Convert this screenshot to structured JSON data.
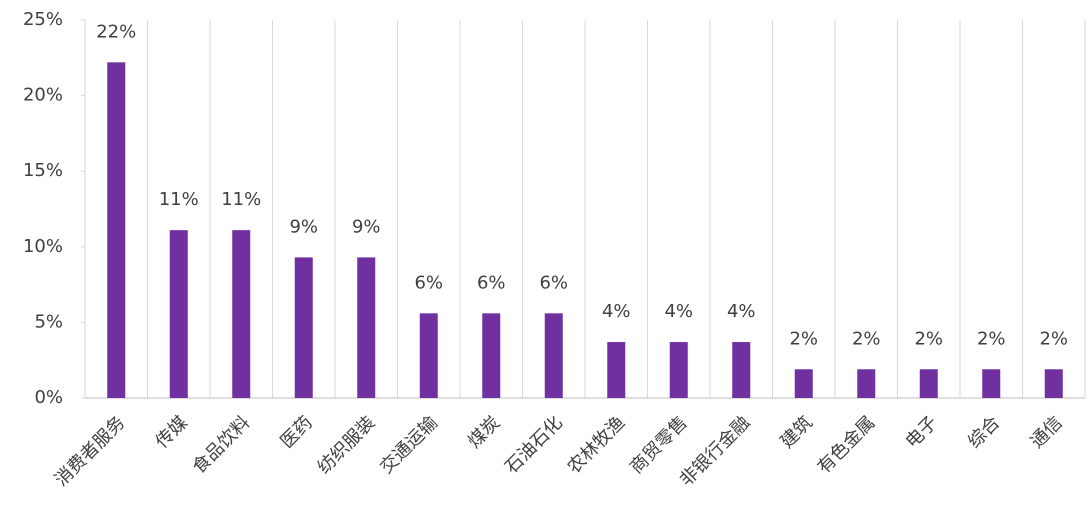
{
  "chart_data": {
    "type": "bar",
    "categories": [
      "消费者服务",
      "传媒",
      "食品饮料",
      "医药",
      "纺织服装",
      "交通运输",
      "煤炭",
      "石油石化",
      "农林牧渔",
      "商贸零售",
      "非银行金融",
      "建筑",
      "有色金属",
      "电子",
      "综合",
      "通信"
    ],
    "values": [
      22.2,
      11.1,
      11.1,
      9.3,
      9.3,
      5.6,
      5.6,
      5.6,
      3.7,
      3.7,
      3.7,
      1.9,
      1.9,
      1.9,
      1.9,
      1.9
    ],
    "value_labels": [
      "22%",
      "11%",
      "11%",
      "9%",
      "9%",
      "6%",
      "6%",
      "6%",
      "4%",
      "4%",
      "4%",
      "2%",
      "2%",
      "2%",
      "2%",
      "2%"
    ],
    "color": "#7030a0",
    "ylim": [
      0,
      25
    ],
    "yticks": [
      {
        "value": 0,
        "label": "0%"
      },
      {
        "value": 5,
        "label": "5%"
      },
      {
        "value": 10,
        "label": "10%"
      },
      {
        "value": 15,
        "label": "15%"
      },
      {
        "value": 20,
        "label": "20%"
      },
      {
        "value": 25,
        "label": "25%"
      }
    ]
  }
}
